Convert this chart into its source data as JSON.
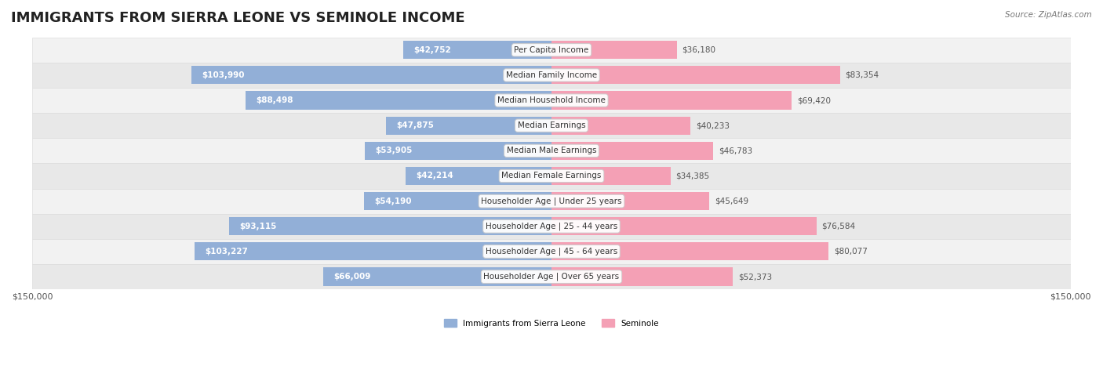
{
  "title": "IMMIGRANTS FROM SIERRA LEONE VS SEMINOLE INCOME",
  "source": "Source: ZipAtlas.com",
  "categories": [
    "Per Capita Income",
    "Median Family Income",
    "Median Household Income",
    "Median Earnings",
    "Median Male Earnings",
    "Median Female Earnings",
    "Householder Age | Under 25 years",
    "Householder Age | 25 - 44 years",
    "Householder Age | 45 - 64 years",
    "Householder Age | Over 65 years"
  ],
  "sierra_leone_values": [
    42752,
    103990,
    88498,
    47875,
    53905,
    42214,
    54190,
    93115,
    103227,
    66009
  ],
  "seminole_values": [
    36180,
    83354,
    69420,
    40233,
    46783,
    34385,
    45649,
    76584,
    80077,
    52373
  ],
  "sierra_leone_labels": [
    "$42,752",
    "$103,990",
    "$88,498",
    "$47,875",
    "$53,905",
    "$42,214",
    "$54,190",
    "$93,115",
    "$103,227",
    "$66,009"
  ],
  "seminole_labels": [
    "$36,180",
    "$83,354",
    "$69,420",
    "$40,233",
    "$46,783",
    "$34,385",
    "$45,649",
    "$76,584",
    "$80,077",
    "$52,373"
  ],
  "sierra_leone_color": "#92afd7",
  "seminole_color": "#f4a0b5",
  "sierra_leone_color_dark": "#6b8fc7",
  "seminole_color_dark": "#f07090",
  "max_value": 150000,
  "background_color": "#ffffff",
  "row_bg_color": "#f0f0f0",
  "legend_sierra_leone": "Immigrants from Sierra Leone",
  "legend_seminole": "Seminole",
  "title_fontsize": 13,
  "label_fontsize": 7.5,
  "axis_label_fontsize": 8
}
